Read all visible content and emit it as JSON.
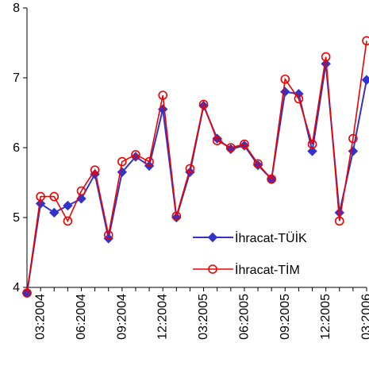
{
  "chart_data": {
    "type": "line",
    "title": "",
    "xlabel": "",
    "ylabel": "",
    "ylim": [
      4,
      8
    ],
    "yticks": [
      "4",
      "5",
      "6",
      "7",
      "8"
    ],
    "x": [
      "2004-02",
      "2004-03",
      "2004-04",
      "2004-05",
      "2004-06",
      "2004-07",
      "2004-08",
      "2004-09",
      "2004-10",
      "2004-11",
      "2004-12",
      "2005-01",
      "2005-02",
      "2005-03",
      "2005-04",
      "2005-05",
      "2005-06",
      "2005-07",
      "2005-08",
      "2005-09",
      "2005-10",
      "2005-11",
      "2005-12",
      "2006-01",
      "2006-02",
      "2006-03"
    ],
    "xtick_labels": [
      "03:2004",
      "06:2004",
      "09:2004",
      "12:2004",
      "03:2005",
      "06:2005",
      "09:2005",
      "12:2005",
      "03:2006"
    ],
    "grid": false,
    "legend_position": "bottom-right",
    "series": [
      {
        "name": "İhracat-TÜİK",
        "color": "#3333cc",
        "marker": "diamond",
        "values": [
          3.92,
          5.2,
          5.07,
          5.17,
          5.27,
          5.62,
          4.7,
          5.65,
          5.87,
          5.74,
          6.55,
          5.0,
          5.65,
          6.6,
          6.13,
          5.98,
          6.03,
          5.75,
          5.55,
          6.8,
          6.77,
          5.95,
          7.2,
          5.07,
          5.95,
          6.97
        ]
      },
      {
        "name": "İhracat-TİM",
        "color": "#ee0000",
        "marker": "circle-open",
        "values": [
          3.92,
          5.3,
          5.3,
          4.95,
          5.38,
          5.68,
          4.75,
          5.8,
          5.9,
          5.8,
          6.75,
          5.02,
          5.7,
          6.62,
          6.1,
          6.0,
          6.05,
          5.77,
          5.55,
          6.98,
          6.7,
          6.05,
          7.3,
          4.95,
          6.13,
          7.53
        ]
      }
    ]
  }
}
